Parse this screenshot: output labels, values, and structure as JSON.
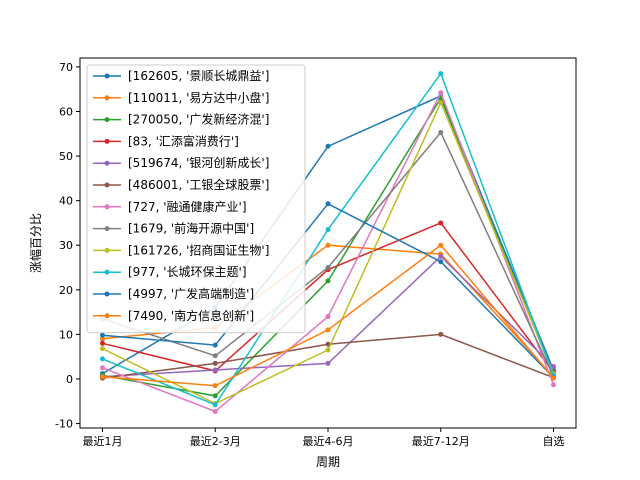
{
  "chart_data": {
    "type": "line",
    "title": "",
    "xlabel": "周期",
    "ylabel": "涨幅百分比",
    "categories": [
      "最近1月",
      "最近2-3月",
      "最近4-6月",
      "最近7-12月",
      "自选"
    ],
    "ylim": [
      -11,
      72
    ],
    "yticks": [
      -10,
      0,
      10,
      20,
      30,
      40,
      50,
      60,
      70
    ],
    "grid": false,
    "legend_position": "top-left",
    "series": [
      {
        "name": "[162605, '景顺长城鼎益']",
        "color": "#1f77b4",
        "values": [
          1.2,
          16.0,
          52.2,
          63.5,
          2.0
        ]
      },
      {
        "name": "[110011, '易方达中小盘']",
        "color": "#ff7f0e",
        "values": [
          9.0,
          11.5,
          30.0,
          28.0,
          0.5
        ]
      },
      {
        "name": "[270050, '广发新经济混']",
        "color": "#2ca02c",
        "values": [
          0.8,
          -3.8,
          22.0,
          63.0,
          1.0
        ]
      },
      {
        "name": "[83, '汇添富消费行']",
        "color": "#d62728",
        "values": [
          8.0,
          1.8,
          24.5,
          35.0,
          1.5
        ]
      },
      {
        "name": "[519674, '银河创新成长']",
        "color": "#9467bd",
        "values": [
          0.5,
          2.0,
          3.5,
          27.5,
          2.8
        ]
      },
      {
        "name": "[486001, '工银全球股票']",
        "color": "#8c564b",
        "values": [
          0.2,
          3.5,
          7.8,
          10.0,
          0.3
        ]
      },
      {
        "name": "[727, '融通健康产业']",
        "color": "#e377c2",
        "values": [
          2.5,
          -7.3,
          14.0,
          64.2,
          -1.3
        ]
      },
      {
        "name": "[1679, '前海开源中国']",
        "color": "#7f7f7f",
        "values": [
          13.5,
          5.2,
          25.0,
          55.3,
          0.5
        ]
      },
      {
        "name": "[161726, '招商国证生物']",
        "color": "#bcbd22",
        "values": [
          6.8,
          -5.5,
          6.5,
          62.0,
          1.2
        ]
      },
      {
        "name": "[977, '长城环保主题']",
        "color": "#17becf",
        "values": [
          4.5,
          -5.8,
          33.5,
          68.5,
          0.8
        ]
      },
      {
        "name": "[4997, '广发高端制造']",
        "color": "#1f77b4",
        "values": [
          9.8,
          7.6,
          39.3,
          26.3,
          0.3
        ]
      },
      {
        "name": "[7490, '南方信息创新']",
        "color": "#ff7f0e",
        "values": [
          0.5,
          -1.5,
          11.0,
          30.0,
          0.2
        ]
      }
    ]
  }
}
